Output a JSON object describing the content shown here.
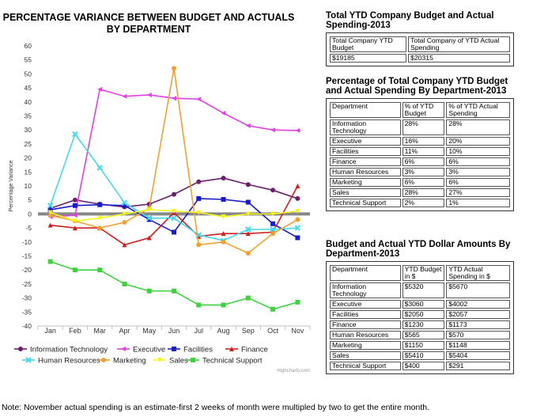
{
  "chart_data": {
    "type": "line",
    "title": "PERCENTAGE VARIANCE BETWEEN BUDGET AND ACTUALS BY DEPARTMENT",
    "ylabel": "Percentage Variance",
    "xlabel": "",
    "categories": [
      "Jan",
      "Feb",
      "Mar",
      "Apr",
      "May",
      "Jun",
      "Jul",
      "Aug",
      "Sep",
      "Oct",
      "Nov"
    ],
    "ylim": [
      -40,
      60
    ],
    "yticks": [
      60,
      55,
      50,
      45,
      40,
      35,
      30,
      25,
      20,
      15,
      10,
      5,
      0,
      -5,
      -10,
      -15,
      -20,
      -25,
      -30,
      -35,
      -40
    ],
    "grid": false,
    "legend_position": "bottom",
    "credit": "Highcharts.com",
    "series": [
      {
        "name": "Information Technology",
        "color": "#6b1e6b",
        "marker": "circle",
        "values": [
          2,
          5,
          3.5,
          2.5,
          3.5,
          7,
          11.5,
          12.8,
          10.5,
          8.5,
          5.5
        ]
      },
      {
        "name": "Executive",
        "color": "#e23fe6",
        "marker": "triangle-left",
        "values": [
          -1,
          -0.5,
          44.5,
          42,
          42.5,
          41.3,
          41,
          36,
          31.5,
          30,
          29.8
        ]
      },
      {
        "name": "Facilities",
        "color": "#1a1acb",
        "marker": "square",
        "values": [
          1.5,
          3,
          3.3,
          3,
          -2,
          -6.5,
          5.5,
          5.2,
          4.2,
          -3.5,
          -8.5
        ]
      },
      {
        "name": "Finance",
        "color": "#cc2020",
        "marker": "triangle",
        "values": [
          -4,
          -5,
          -5,
          -11,
          -8.5,
          0.5,
          -8,
          -7,
          -7,
          -6.5,
          10
        ]
      },
      {
        "name": "Human Resources",
        "color": "#45d8ec",
        "marker": "cross",
        "values": [
          3,
          28.5,
          16.5,
          4,
          -1.5,
          -1.5,
          -7.5,
          -9.5,
          -5.5,
          -5.5,
          -5
        ]
      },
      {
        "name": "Marketing",
        "color": "#f0a030",
        "marker": "circle",
        "values": [
          -0.5,
          -2.5,
          -5,
          -3,
          2,
          52,
          -11,
          -10,
          -14,
          -7,
          -2
        ]
      },
      {
        "name": "Sales",
        "color": "#f5f520",
        "marker": "triangle-down",
        "values": [
          0.5,
          -2.5,
          -1.5,
          0,
          1.5,
          1,
          0.5,
          -1,
          0,
          0,
          1
        ]
      },
      {
        "name": "Technical Support",
        "color": "#3ed23e",
        "marker": "square",
        "values": [
          -17,
          -20,
          -20,
          -25,
          -27.5,
          -27.5,
          -32.5,
          -32.5,
          -30,
          -34,
          -31.5
        ]
      }
    ]
  },
  "panel1": {
    "title": "Total YTD Company Budget and Actual Spending-2013",
    "header_budget": "Total Company YTD Budget",
    "header_actual": "Total Company of YTD Actual Spending",
    "budget": "$19185",
    "actual": "$20315"
  },
  "panel2": {
    "title": "Percentage of Total Company YTD Budget and Actual Spending By Department-2013",
    "headers": [
      "Department",
      "% of YTD Budget",
      "% of YTD Actual Spending"
    ],
    "rows": [
      [
        "Information Technology",
        "28%",
        "28%"
      ],
      [
        "Executive",
        "16%",
        "20%"
      ],
      [
        "Facilities",
        "11%",
        "10%"
      ],
      [
        "Finance",
        "6%",
        "6%"
      ],
      [
        "Human Resources",
        "3%",
        "3%"
      ],
      [
        "Marketing",
        "6%",
        "6%"
      ],
      [
        "Sales",
        "28%",
        "27%"
      ],
      [
        "Technical Support",
        "2%",
        "1%"
      ]
    ]
  },
  "panel3": {
    "title": "Budget and Actual YTD Dollar Amounts By Department-2013",
    "headers": [
      "Department",
      "YTD Budget in $",
      "YTD Actual Spending in $"
    ],
    "rows": [
      [
        "Information Technology",
        "$5320",
        "$5670"
      ],
      [
        "Executive",
        "$3060",
        "$4002"
      ],
      [
        "Facilities",
        "$2050",
        "$2057"
      ],
      [
        "Finance",
        "$1230",
        "$1173"
      ],
      [
        "Human Resources",
        "$565",
        "$570"
      ],
      [
        "Marketing",
        "$1150",
        "$1148"
      ],
      [
        "Sales",
        "$5410",
        "$5404"
      ],
      [
        "Technical Support",
        "$400",
        "$291"
      ]
    ]
  },
  "note": "Note: November actual spending is an estimate-first 2 weeks of month were multipled by two to get the entire month."
}
